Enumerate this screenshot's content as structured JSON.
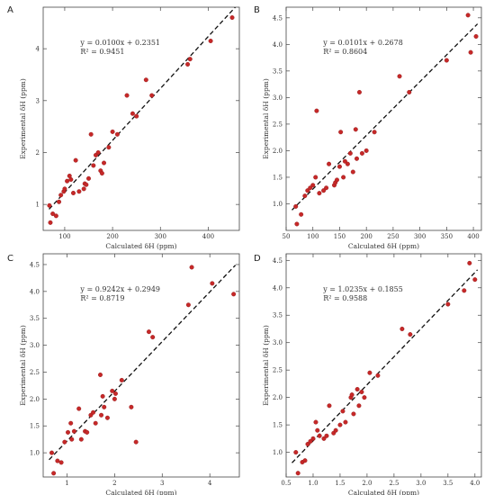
{
  "chart_data": [
    {
      "panel": "A",
      "type": "scatter",
      "xlabel": "Calculated δH (ppm)",
      "ylabel": "Experimental δH (ppm)",
      "xlim": [
        55,
        465
      ],
      "ylim": [
        0.5,
        4.8
      ],
      "xticks": [
        100,
        200,
        300,
        400
      ],
      "yticks": [
        1,
        2,
        3,
        4
      ],
      "equation": "y = 0.0100x + 0.2351",
      "r2": "R² = 0.9451",
      "fit": {
        "slope": 0.01,
        "intercept": 0.2351
      },
      "x": [
        68,
        70,
        75,
        82,
        88,
        92,
        98,
        100,
        105,
        110,
        113,
        118,
        123,
        130,
        140,
        142,
        145,
        150,
        155,
        160,
        165,
        170,
        175,
        178,
        182,
        192,
        200,
        210,
        230,
        242,
        250,
        270,
        282,
        357,
        362,
        405,
        450
      ],
      "y": [
        0.98,
        0.65,
        0.82,
        0.78,
        1.05,
        1.18,
        1.25,
        1.3,
        1.45,
        1.55,
        1.48,
        1.22,
        1.85,
        1.25,
        1.3,
        1.4,
        1.38,
        1.5,
        2.35,
        1.75,
        1.95,
        2.0,
        1.65,
        1.6,
        1.8,
        2.1,
        2.4,
        2.35,
        3.1,
        2.75,
        2.7,
        3.4,
        3.1,
        3.7,
        3.8,
        4.15,
        4.6
      ]
    },
    {
      "panel": "B",
      "type": "scatter",
      "xlabel": "Calculated δH (ppm)",
      "ylabel": "Experimental δH (ppm)",
      "xlim": [
        50,
        415
      ],
      "ylim": [
        0.5,
        4.7
      ],
      "xticks": [
        50,
        100,
        150,
        200,
        250,
        300,
        350,
        400
      ],
      "yticks": [
        1.0,
        1.5,
        2.0,
        2.5,
        3.0,
        3.5,
        4.0,
        4.5
      ],
      "equation": "y = 0.0101x + 0.2678",
      "r2": "R² = 0.8604",
      "fit": {
        "slope": 0.0101,
        "intercept": 0.2678
      },
      "x": [
        68,
        70,
        78,
        85,
        90,
        95,
        100,
        105,
        107,
        112,
        120,
        125,
        130,
        140,
        142,
        145,
        150,
        152,
        157,
        160,
        165,
        170,
        175,
        180,
        182,
        187,
        192,
        200,
        215,
        262,
        280,
        350,
        390,
        395,
        405
      ],
      "y": [
        0.95,
        0.62,
        0.8,
        1.15,
        1.25,
        1.3,
        1.35,
        1.5,
        2.75,
        1.2,
        1.25,
        1.3,
        1.75,
        1.35,
        1.4,
        1.45,
        1.7,
        2.35,
        1.5,
        1.8,
        1.75,
        1.95,
        1.6,
        2.4,
        1.85,
        3.1,
        1.95,
        2.0,
        2.35,
        3.4,
        3.1,
        3.7,
        4.55,
        3.85,
        4.15
      ]
    },
    {
      "panel": "C",
      "type": "scatter",
      "xlabel": "Calculated δH (ppm)",
      "ylabel": "Experimental δH (ppm)",
      "xlim": [
        0.5,
        4.62
      ],
      "ylim": [
        0.55,
        4.7
      ],
      "xticks": [
        1,
        2,
        3,
        4
      ],
      "yticks": [
        1.0,
        1.5,
        2.0,
        2.5,
        3.0,
        3.5,
        4.0,
        4.5
      ],
      "equation": "y = 0.9242x + 0.2949",
      "r2": "R² = 0.8719",
      "fit": {
        "slope": 0.9242,
        "intercept": 0.2949
      },
      "x": [
        0.68,
        0.72,
        0.8,
        0.88,
        0.95,
        1.02,
        1.08,
        1.1,
        1.15,
        1.25,
        1.3,
        1.38,
        1.42,
        1.5,
        1.55,
        1.6,
        1.7,
        1.72,
        1.75,
        1.78,
        1.85,
        1.95,
        2.0,
        2.02,
        2.15,
        2.35,
        2.45,
        2.72,
        2.8,
        3.55,
        3.62,
        4.05,
        4.5
      ],
      "y": [
        1.0,
        0.62,
        0.85,
        0.82,
        1.2,
        1.38,
        1.55,
        1.25,
        1.4,
        1.82,
        1.25,
        1.4,
        1.38,
        1.7,
        1.75,
        1.55,
        2.45,
        1.7,
        2.05,
        1.85,
        1.65,
        2.15,
        2.0,
        2.1,
        2.35,
        1.85,
        1.2,
        3.25,
        3.15,
        3.75,
        4.45,
        4.15,
        3.95
      ]
    },
    {
      "panel": "D",
      "type": "scatter",
      "xlabel": "Calculated δH (ppm)",
      "ylabel": "Experimental δH (ppm)",
      "xlim": [
        0.5,
        4.12
      ],
      "ylim": [
        0.55,
        4.62
      ],
      "xticks": [
        0.5,
        1.0,
        1.5,
        2.0,
        2.5,
        3.0,
        3.5,
        4.0
      ],
      "yticks": [
        1.0,
        1.5,
        2.0,
        2.5,
        3.0,
        3.5,
        4.0,
        4.5
      ],
      "equation": "y = 1.0235x + 0.1855",
      "r2": "R² = 0.9588",
      "fit": {
        "slope": 1.0235,
        "intercept": 0.1855
      },
      "x": [
        0.68,
        0.72,
        0.8,
        0.85,
        0.9,
        0.95,
        1.0,
        1.05,
        1.08,
        1.12,
        1.2,
        1.25,
        1.3,
        1.38,
        1.42,
        1.5,
        1.55,
        1.6,
        1.7,
        1.72,
        1.75,
        1.82,
        1.85,
        1.9,
        1.95,
        2.05,
        2.2,
        2.65,
        2.8,
        3.5,
        3.8,
        3.9,
        4.0
      ],
      "y": [
        1.0,
        0.62,
        0.82,
        0.85,
        1.15,
        1.2,
        1.25,
        1.55,
        1.4,
        1.3,
        1.25,
        1.3,
        1.85,
        1.35,
        1.4,
        1.5,
        1.75,
        1.55,
        2.0,
        2.05,
        1.7,
        2.15,
        1.85,
        2.1,
        2.0,
        2.45,
        2.4,
        3.25,
        3.15,
        3.7,
        3.95,
        4.45,
        4.15
      ]
    }
  ]
}
